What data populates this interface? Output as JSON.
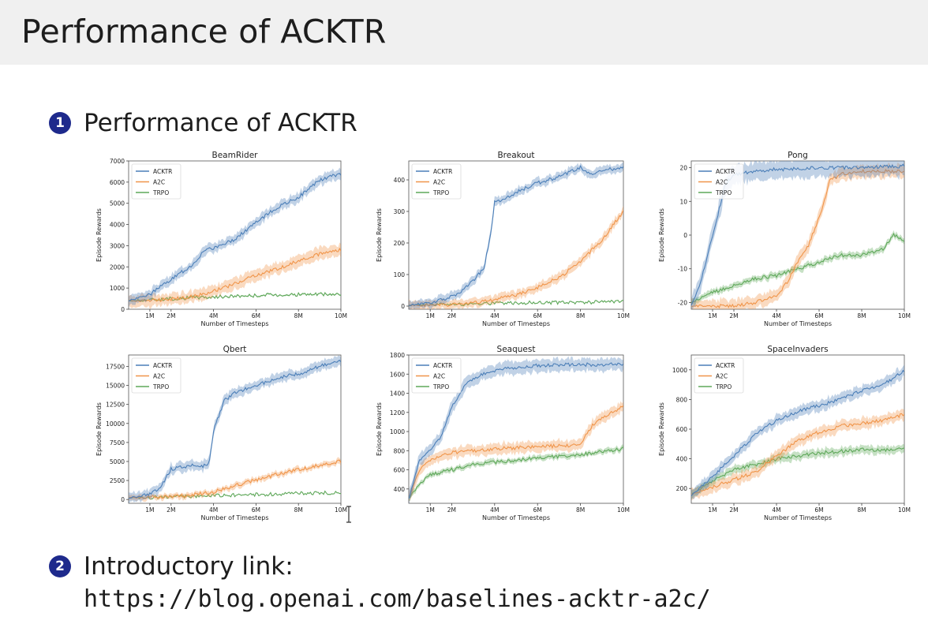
{
  "page": {
    "title": "Performance of ACKTR"
  },
  "bullets": [
    {
      "number": "1",
      "text": "Performance of ACKTR"
    },
    {
      "number": "2",
      "text": "Introductory link:",
      "link": "https://blog.openai.com/baselines-acktr-a2c/"
    }
  ],
  "colors": {
    "ACKTR": "#4c7fb8",
    "A2C": "#f0954a",
    "TRPO": "#5fa85a",
    "bullet": "#1e2a8c"
  },
  "chart_data": [
    {
      "type": "line",
      "title": "BeamRider",
      "xlabel": "Number of Timesteps",
      "ylabel": "Episode Rewards",
      "xlim": [
        0,
        10
      ],
      "ylim": [
        0,
        7000
      ],
      "xticks": [
        1,
        2,
        4,
        6,
        8,
        10
      ],
      "xtick_labels": [
        "1M",
        "2M",
        "4M",
        "6M",
        "8M",
        "10M"
      ],
      "yticks": [
        0,
        1000,
        2000,
        3000,
        4000,
        5000,
        6000,
        7000
      ],
      "ytick_labels": [
        "0",
        "1000",
        "2000",
        "3000",
        "4000",
        "5000",
        "6000",
        "7000"
      ],
      "legend": "top-left",
      "legend_entries": [
        "ACKTR",
        "A2C",
        "TRPO"
      ],
      "series": [
        {
          "name": "ACKTR",
          "x": [
            0,
            1,
            2,
            3,
            3.5,
            4,
            5,
            6,
            7,
            8,
            9,
            10
          ],
          "y": [
            400,
            700,
            1400,
            2100,
            2700,
            2900,
            3300,
            4100,
            4800,
            5300,
            6100,
            6400
          ],
          "band": 250
        },
        {
          "name": "A2C",
          "x": [
            0,
            1,
            2,
            3,
            4,
            5,
            6,
            7,
            8,
            9,
            10
          ],
          "y": [
            400,
            420,
            480,
            600,
            850,
            1200,
            1600,
            1900,
            2300,
            2600,
            2800
          ],
          "band": 300
        },
        {
          "name": "TRPO",
          "x": [
            0,
            1,
            2,
            3,
            4,
            5,
            6,
            7,
            8,
            9,
            10
          ],
          "y": [
            400,
            450,
            500,
            550,
            580,
            620,
            650,
            680,
            700,
            700,
            700
          ],
          "band": 40
        }
      ]
    },
    {
      "type": "line",
      "title": "Breakout",
      "xlabel": "Number of Timesteps",
      "ylabel": "Episode Rewards",
      "xlim": [
        0,
        10
      ],
      "ylim": [
        -10,
        460
      ],
      "xticks": [
        1,
        2,
        4,
        6,
        8,
        10
      ],
      "xtick_labels": [
        "1M",
        "2M",
        "4M",
        "6M",
        "8M",
        "10M"
      ],
      "yticks": [
        0,
        100,
        200,
        300,
        400
      ],
      "ytick_labels": [
        "0",
        "100",
        "200",
        "300",
        "400"
      ],
      "legend": "top-left",
      "legend_entries": [
        "ACKTR",
        "A2C",
        "TRPO"
      ],
      "series": [
        {
          "name": "ACKTR",
          "x": [
            0,
            1,
            2,
            2.5,
            3,
            3.5,
            3.8,
            4,
            4.5,
            5,
            6,
            7,
            8,
            8.5,
            9,
            10
          ],
          "y": [
            3,
            10,
            30,
            50,
            80,
            120,
            220,
            330,
            340,
            360,
            390,
            410,
            440,
            415,
            430,
            440
          ],
          "band": 15
        },
        {
          "name": "A2C",
          "x": [
            0,
            1,
            2,
            3,
            4,
            5,
            6,
            7,
            8,
            9,
            10
          ],
          "y": [
            3,
            3,
            5,
            10,
            20,
            35,
            60,
            90,
            140,
            210,
            300
          ],
          "band": 15
        },
        {
          "name": "TRPO",
          "x": [
            0,
            2,
            4,
            6,
            8,
            10
          ],
          "y": [
            3,
            6,
            9,
            11,
            12,
            13
          ],
          "band": 2
        }
      ]
    },
    {
      "type": "line",
      "title": "Pong",
      "xlabel": "Number of Timesteps",
      "ylabel": "Episode Rewards",
      "xlim": [
        0,
        10
      ],
      "ylim": [
        -22,
        22
      ],
      "xticks": [
        1,
        2,
        4,
        6,
        8,
        10
      ],
      "xtick_labels": [
        "1M",
        "2M",
        "4M",
        "6M",
        "8M",
        "10M"
      ],
      "yticks": [
        -20,
        -10,
        0,
        10,
        20
      ],
      "ytick_labels": [
        "-20",
        "-10",
        "0",
        "10",
        "20"
      ],
      "legend": "top-left",
      "legend_entries": [
        "ACKTR",
        "A2C",
        "TRPO"
      ],
      "series": [
        {
          "name": "ACKTR",
          "x": [
            0,
            0.4,
            0.8,
            1.2,
            1.6,
            2,
            3,
            4,
            6,
            8,
            10
          ],
          "y": [
            -21,
            -15,
            -5,
            5,
            15,
            18,
            19,
            19.5,
            20,
            20,
            20.5
          ],
          "band": 3
        },
        {
          "name": "A2C",
          "x": [
            0,
            1,
            2,
            3,
            4,
            4.5,
            5,
            5.5,
            6,
            6.5,
            7,
            8,
            9,
            10
          ],
          "y": [
            -21,
            -21,
            -21,
            -20,
            -18,
            -14,
            -8,
            -3,
            5,
            16,
            18,
            19,
            19,
            19
          ],
          "band": 2
        },
        {
          "name": "TRPO",
          "x": [
            0,
            1,
            2,
            3,
            4,
            5,
            6,
            7,
            8,
            9,
            9.5,
            10
          ],
          "y": [
            -20,
            -17,
            -15,
            -13,
            -12,
            -10,
            -8,
            -6,
            -6,
            -4,
            0,
            -2
          ],
          "band": 1
        }
      ]
    },
    {
      "type": "line",
      "title": "Qbert",
      "xlabel": "Number of Timesteps",
      "ylabel": "Episode Rewards",
      "xlim": [
        0,
        10
      ],
      "ylim": [
        -500,
        19000
      ],
      "xticks": [
        1,
        2,
        4,
        6,
        8,
        10
      ],
      "xtick_labels": [
        "1M",
        "2M",
        "4M",
        "6M",
        "8M",
        "10M"
      ],
      "yticks": [
        0,
        2500,
        5000,
        7500,
        10000,
        12500,
        15000,
        17500
      ],
      "ytick_labels": [
        "0",
        "2500",
        "5000",
        "7500",
        "10000",
        "12500",
        "15000",
        "17500"
      ],
      "legend": "top-left",
      "legend_entries": [
        "ACKTR",
        "A2C",
        "TRPO"
      ],
      "series": [
        {
          "name": "ACKTR",
          "x": [
            0,
            1,
            1.5,
            2,
            3,
            3.5,
            3.8,
            4,
            4.5,
            5,
            6,
            7,
            8,
            9,
            10
          ],
          "y": [
            200,
            700,
            1500,
            4000,
            4500,
            4400,
            4800,
            9000,
            13000,
            14000,
            15000,
            16000,
            16500,
            17500,
            18300
          ],
          "band": 700
        },
        {
          "name": "A2C",
          "x": [
            0,
            1,
            2,
            3,
            4,
            5,
            6,
            7,
            8,
            9,
            10
          ],
          "y": [
            200,
            300,
            400,
            600,
            1000,
            1800,
            2600,
            3300,
            3900,
            4500,
            5000
          ],
          "band": 400
        },
        {
          "name": "TRPO",
          "x": [
            0,
            2,
            4,
            6,
            8,
            10
          ],
          "y": [
            200,
            350,
            500,
            650,
            800,
            900
          ],
          "band": 60
        }
      ]
    },
    {
      "type": "line",
      "title": "Seaquest",
      "xlabel": "Number of Timesteps",
      "ylabel": "Episode Rewards",
      "xlim": [
        0,
        10
      ],
      "ylim": [
        250,
        1800
      ],
      "xticks": [
        1,
        2,
        4,
        6,
        8,
        10
      ],
      "xtick_labels": [
        "1M",
        "2M",
        "4M",
        "6M",
        "8M",
        "10M"
      ],
      "yticks": [
        400,
        600,
        800,
        1000,
        1200,
        1400,
        1600,
        1800
      ],
      "ytick_labels": [
        "400",
        "600",
        "800",
        "1000",
        "1200",
        "1400",
        "1600",
        "1800"
      ],
      "legend": "top-left",
      "legend_entries": [
        "ACKTR",
        "A2C",
        "TRPO"
      ],
      "series": [
        {
          "name": "ACKTR",
          "x": [
            0,
            0.5,
            1,
            1.5,
            2,
            2.5,
            3,
            4,
            5,
            6,
            7,
            8,
            9,
            10
          ],
          "y": [
            300,
            700,
            800,
            950,
            1250,
            1450,
            1560,
            1640,
            1670,
            1690,
            1700,
            1700,
            1700,
            1700
          ],
          "band": 70
        },
        {
          "name": "A2C",
          "x": [
            0,
            0.5,
            1,
            2,
            3,
            4,
            5,
            6,
            7,
            8,
            8.5,
            9,
            10
          ],
          "y": [
            300,
            600,
            700,
            780,
            800,
            820,
            830,
            840,
            850,
            860,
            1050,
            1150,
            1260
          ],
          "band": 60
        },
        {
          "name": "TRPO",
          "x": [
            0,
            0.5,
            1,
            2,
            3,
            4,
            5,
            6,
            7,
            8,
            9,
            10
          ],
          "y": [
            300,
            450,
            550,
            600,
            650,
            680,
            700,
            720,
            740,
            760,
            790,
            820
          ],
          "band": 30
        }
      ]
    },
    {
      "type": "line",
      "title": "SpaceInvaders",
      "xlabel": "Number of Timesteps",
      "ylabel": "Episode Rewards",
      "xlim": [
        0,
        10
      ],
      "ylim": [
        100,
        1100
      ],
      "xticks": [
        1,
        2,
        4,
        6,
        8,
        10
      ],
      "xtick_labels": [
        "1M",
        "2M",
        "4M",
        "6M",
        "8M",
        "10M"
      ],
      "yticks": [
        200,
        400,
        600,
        800,
        1000
      ],
      "ytick_labels": [
        "200",
        "400",
        "600",
        "800",
        "1000"
      ],
      "legend": "top-left",
      "legend_entries": [
        "ACKTR",
        "A2C",
        "TRPO"
      ],
      "series": [
        {
          "name": "ACKTR",
          "x": [
            0,
            1,
            2,
            3,
            4,
            5,
            6,
            7,
            8,
            9,
            10
          ],
          "y": [
            150,
            280,
            420,
            560,
            660,
            720,
            760,
            800,
            860,
            900,
            990
          ],
          "band": 40
        },
        {
          "name": "A2C",
          "x": [
            0,
            1,
            2,
            3,
            4,
            5,
            6,
            7,
            8,
            9,
            10
          ],
          "y": [
            160,
            210,
            260,
            310,
            420,
            520,
            580,
            620,
            640,
            660,
            700
          ],
          "band": 40
        },
        {
          "name": "TRPO",
          "x": [
            0,
            1,
            2,
            3,
            4,
            5,
            6,
            7,
            8,
            9,
            10
          ],
          "y": [
            160,
            250,
            330,
            360,
            400,
            420,
            440,
            450,
            460,
            460,
            470
          ],
          "band": 30
        }
      ]
    }
  ]
}
